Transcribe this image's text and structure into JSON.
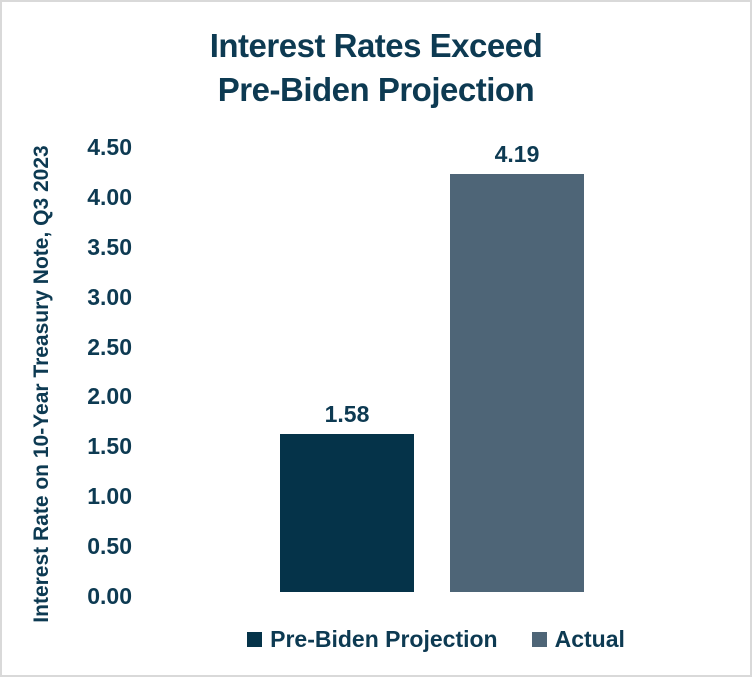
{
  "frame": {
    "background": "#ffffff",
    "border_color": "#d9d9d9",
    "text_color": "#0d3a52"
  },
  "chart_data": {
    "type": "bar",
    "title": "Interest Rates Exceed Pre-Biden Projection",
    "title_lines": [
      "Interest Rates Exceed",
      "Pre-Biden Projection"
    ],
    "xlabel": "",
    "ylabel": "Interest Rate on 10-Year Treasury Note, Q3 2023",
    "categories": [
      "Pre-Biden Projection",
      "Actual"
    ],
    "values": [
      1.58,
      4.19
    ],
    "value_labels": [
      "1.58",
      "4.19"
    ],
    "bar_colors": [
      "#053349",
      "#4e6577"
    ],
    "ylim": [
      0,
      4.5
    ],
    "ytick_step": 0.5,
    "yticks": [
      "4.50",
      "4.00",
      "3.50",
      "3.00",
      "2.50",
      "2.00",
      "1.50",
      "1.00",
      "0.50",
      "0.00"
    ],
    "grid": false,
    "legend": {
      "position": "bottom",
      "entries": [
        {
          "label": "Pre-Biden Projection",
          "color": "#053349"
        },
        {
          "label": "Actual",
          "color": "#4e6577"
        }
      ]
    }
  }
}
